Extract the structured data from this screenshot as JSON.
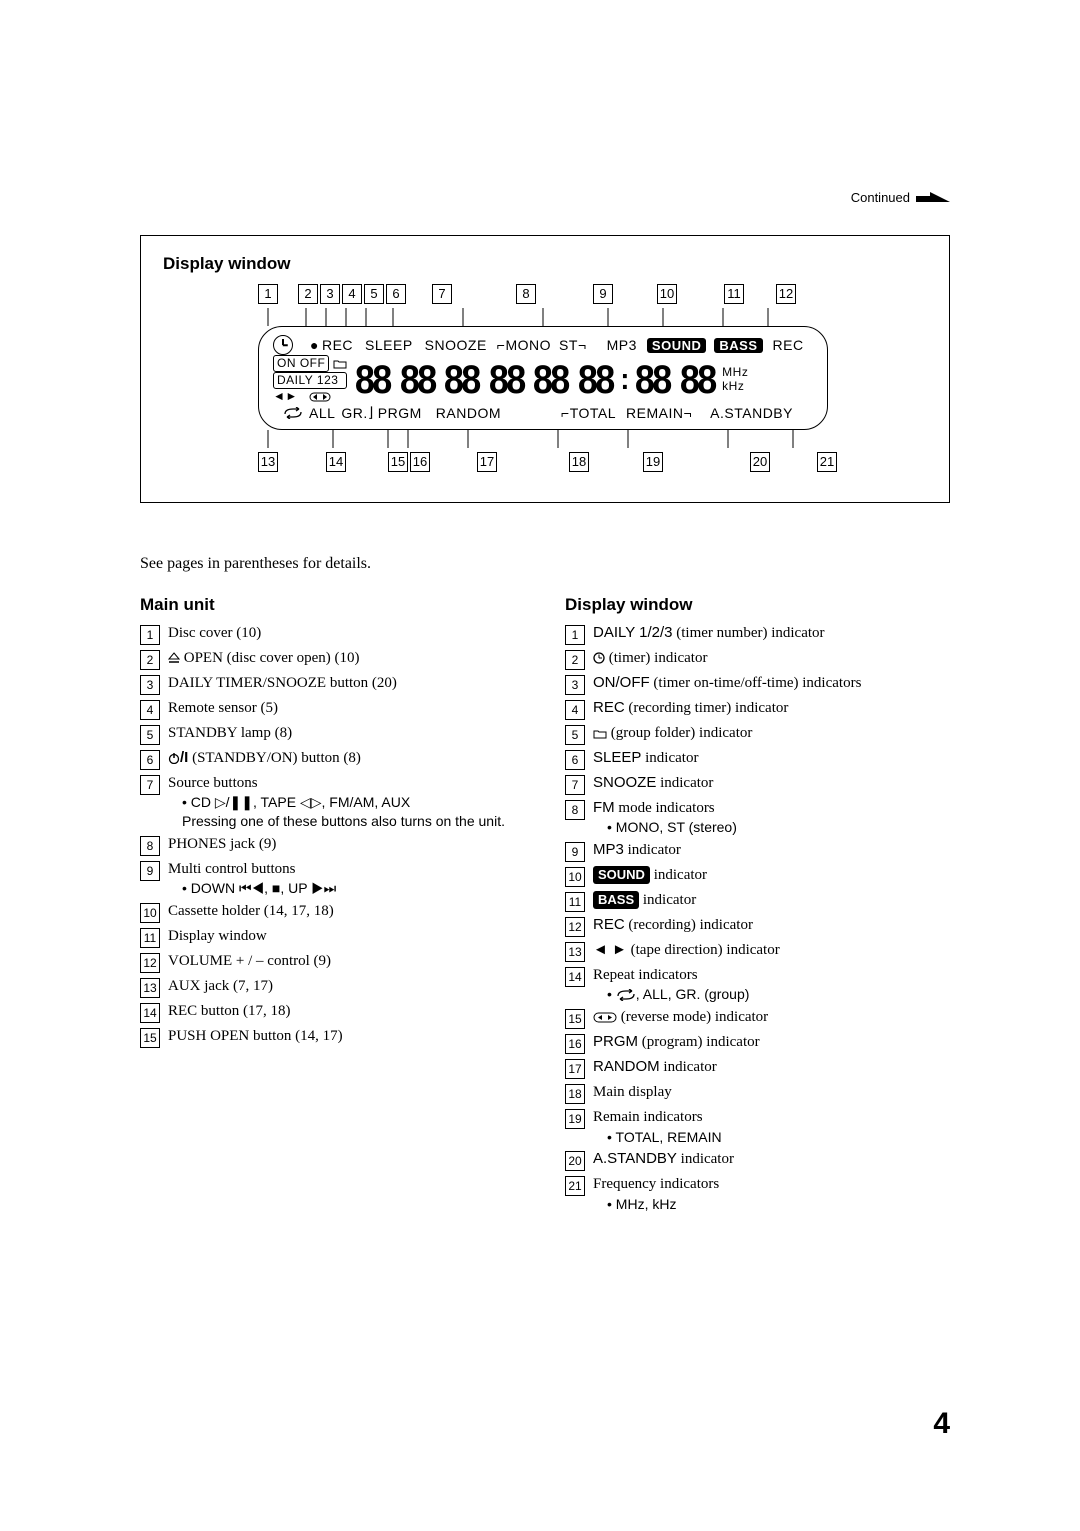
{
  "header": {
    "continued": "Continued"
  },
  "diagram": {
    "title": "Display window",
    "top_callouts": [
      "1",
      "2",
      "3",
      "4",
      "5",
      "6",
      "7",
      "8",
      "9",
      "10",
      "11",
      "12"
    ],
    "bottom_callouts": [
      "13",
      "14",
      "15",
      "16",
      "17",
      "18",
      "19",
      "20",
      "21"
    ],
    "row1": {
      "rec_dot": "REC",
      "sleep": "SLEEP",
      "snooze": "SNOOZE",
      "mono": "MONO",
      "st": "ST",
      "mp3": "MP3",
      "sound": "SOUND",
      "bass": "BASS",
      "rec2": "REC"
    },
    "left": {
      "onoff": "ON OFF",
      "daily": "DAILY 123"
    },
    "freq": {
      "mhz": "MHz",
      "khz": "kHz"
    },
    "row3": {
      "all": "ALL",
      "gr": "GR.",
      "prgm": "PRGM",
      "random": "RANDOM",
      "total": "TOTAL",
      "remain": "REMAIN",
      "astandby": "A.STANDBY"
    }
  },
  "intro": "See pages in parentheses for details.",
  "left_col": {
    "heading": "Main unit",
    "items": [
      {
        "n": "1",
        "text": "Disc cover (10)"
      },
      {
        "n": "2",
        "text": "OPEN (disc cover open) (10)",
        "pre_icon": "eject"
      },
      {
        "n": "3",
        "text": "DAILY TIMER/SNOOZE button (20)"
      },
      {
        "n": "4",
        "text": "Remote sensor (5)"
      },
      {
        "n": "5",
        "text": "STANDBY lamp (8)"
      },
      {
        "n": "6",
        "text": "(STANDBY/ON) button (8)",
        "pre_icon": "power"
      },
      {
        "n": "7",
        "text": "Source buttons",
        "sub1": "• CD ▷/❚❚, TAPE ◁▷, FM/AM, AUX",
        "sub2": "Pressing one of these buttons also turns on the unit."
      },
      {
        "n": "8",
        "text": "PHONES jack (9)"
      },
      {
        "n": "9",
        "text": "Multi control buttons",
        "sub1": "• DOWN ⏮◀, ■, UP ▶⏭"
      },
      {
        "n": "10",
        "text": "Cassette holder (14, 17, 18)"
      },
      {
        "n": "11",
        "text": "Display window"
      },
      {
        "n": "12",
        "text": "VOLUME + / – control (9)"
      },
      {
        "n": "13",
        "text": "AUX jack (7, 17)"
      },
      {
        "n": "14",
        "text": "REC button (17, 18)"
      },
      {
        "n": "15",
        "text": "PUSH OPEN button (14, 17)"
      }
    ]
  },
  "right_col": {
    "heading": "Display window",
    "items": [
      {
        "n": "1",
        "sans": "DAILY 1/2/3",
        "text": " (timer number) indicator"
      },
      {
        "n": "2",
        "pre_icon": "clock",
        "text": " (timer) indicator"
      },
      {
        "n": "3",
        "sans": "ON/OFF",
        "text": " (timer on-time/off-time) indicators"
      },
      {
        "n": "4",
        "sans": "REC",
        "text": " (recording timer) indicator"
      },
      {
        "n": "5",
        "pre_icon": "folder",
        "text": " (group folder) indicator"
      },
      {
        "n": "6",
        "sans": "SLEEP",
        "text": " indicator"
      },
      {
        "n": "7",
        "sans": "SNOOZE",
        "text": " indicator"
      },
      {
        "n": "8",
        "sans": "FM",
        "text": " mode indicators",
        "sub1": "• MONO, ST (stereo)"
      },
      {
        "n": "9",
        "sans": "MP3",
        "text": " indicator"
      },
      {
        "n": "10",
        "inv": "SOUND",
        "text": " indicator"
      },
      {
        "n": "11",
        "inv": "BASS",
        "text": " indicator"
      },
      {
        "n": "12",
        "sans": "REC",
        "text": " (recording) indicator"
      },
      {
        "n": "13",
        "pre_icon": "tape_dir",
        "text": " (tape direction) indicator"
      },
      {
        "n": "14",
        "text": "Repeat indicators",
        "sub1_icon": "repeat",
        "sub1": ", ALL, GR. (group)"
      },
      {
        "n": "15",
        "pre_icon": "reverse",
        "text": " (reverse mode) indicator"
      },
      {
        "n": "16",
        "sans": "PRGM",
        "text": " (program) indicator"
      },
      {
        "n": "17",
        "sans": "RANDOM",
        "text": " indicator"
      },
      {
        "n": "18",
        "text": "Main display"
      },
      {
        "n": "19",
        "text": "Remain indicators",
        "sub1": "• TOTAL, REMAIN"
      },
      {
        "n": "20",
        "sans": "A.STANDBY",
        "text": " indicator"
      },
      {
        "n": "21",
        "text": "Frequency indicators",
        "sub1": "• MHz, kHz"
      }
    ]
  },
  "page_number": "4"
}
